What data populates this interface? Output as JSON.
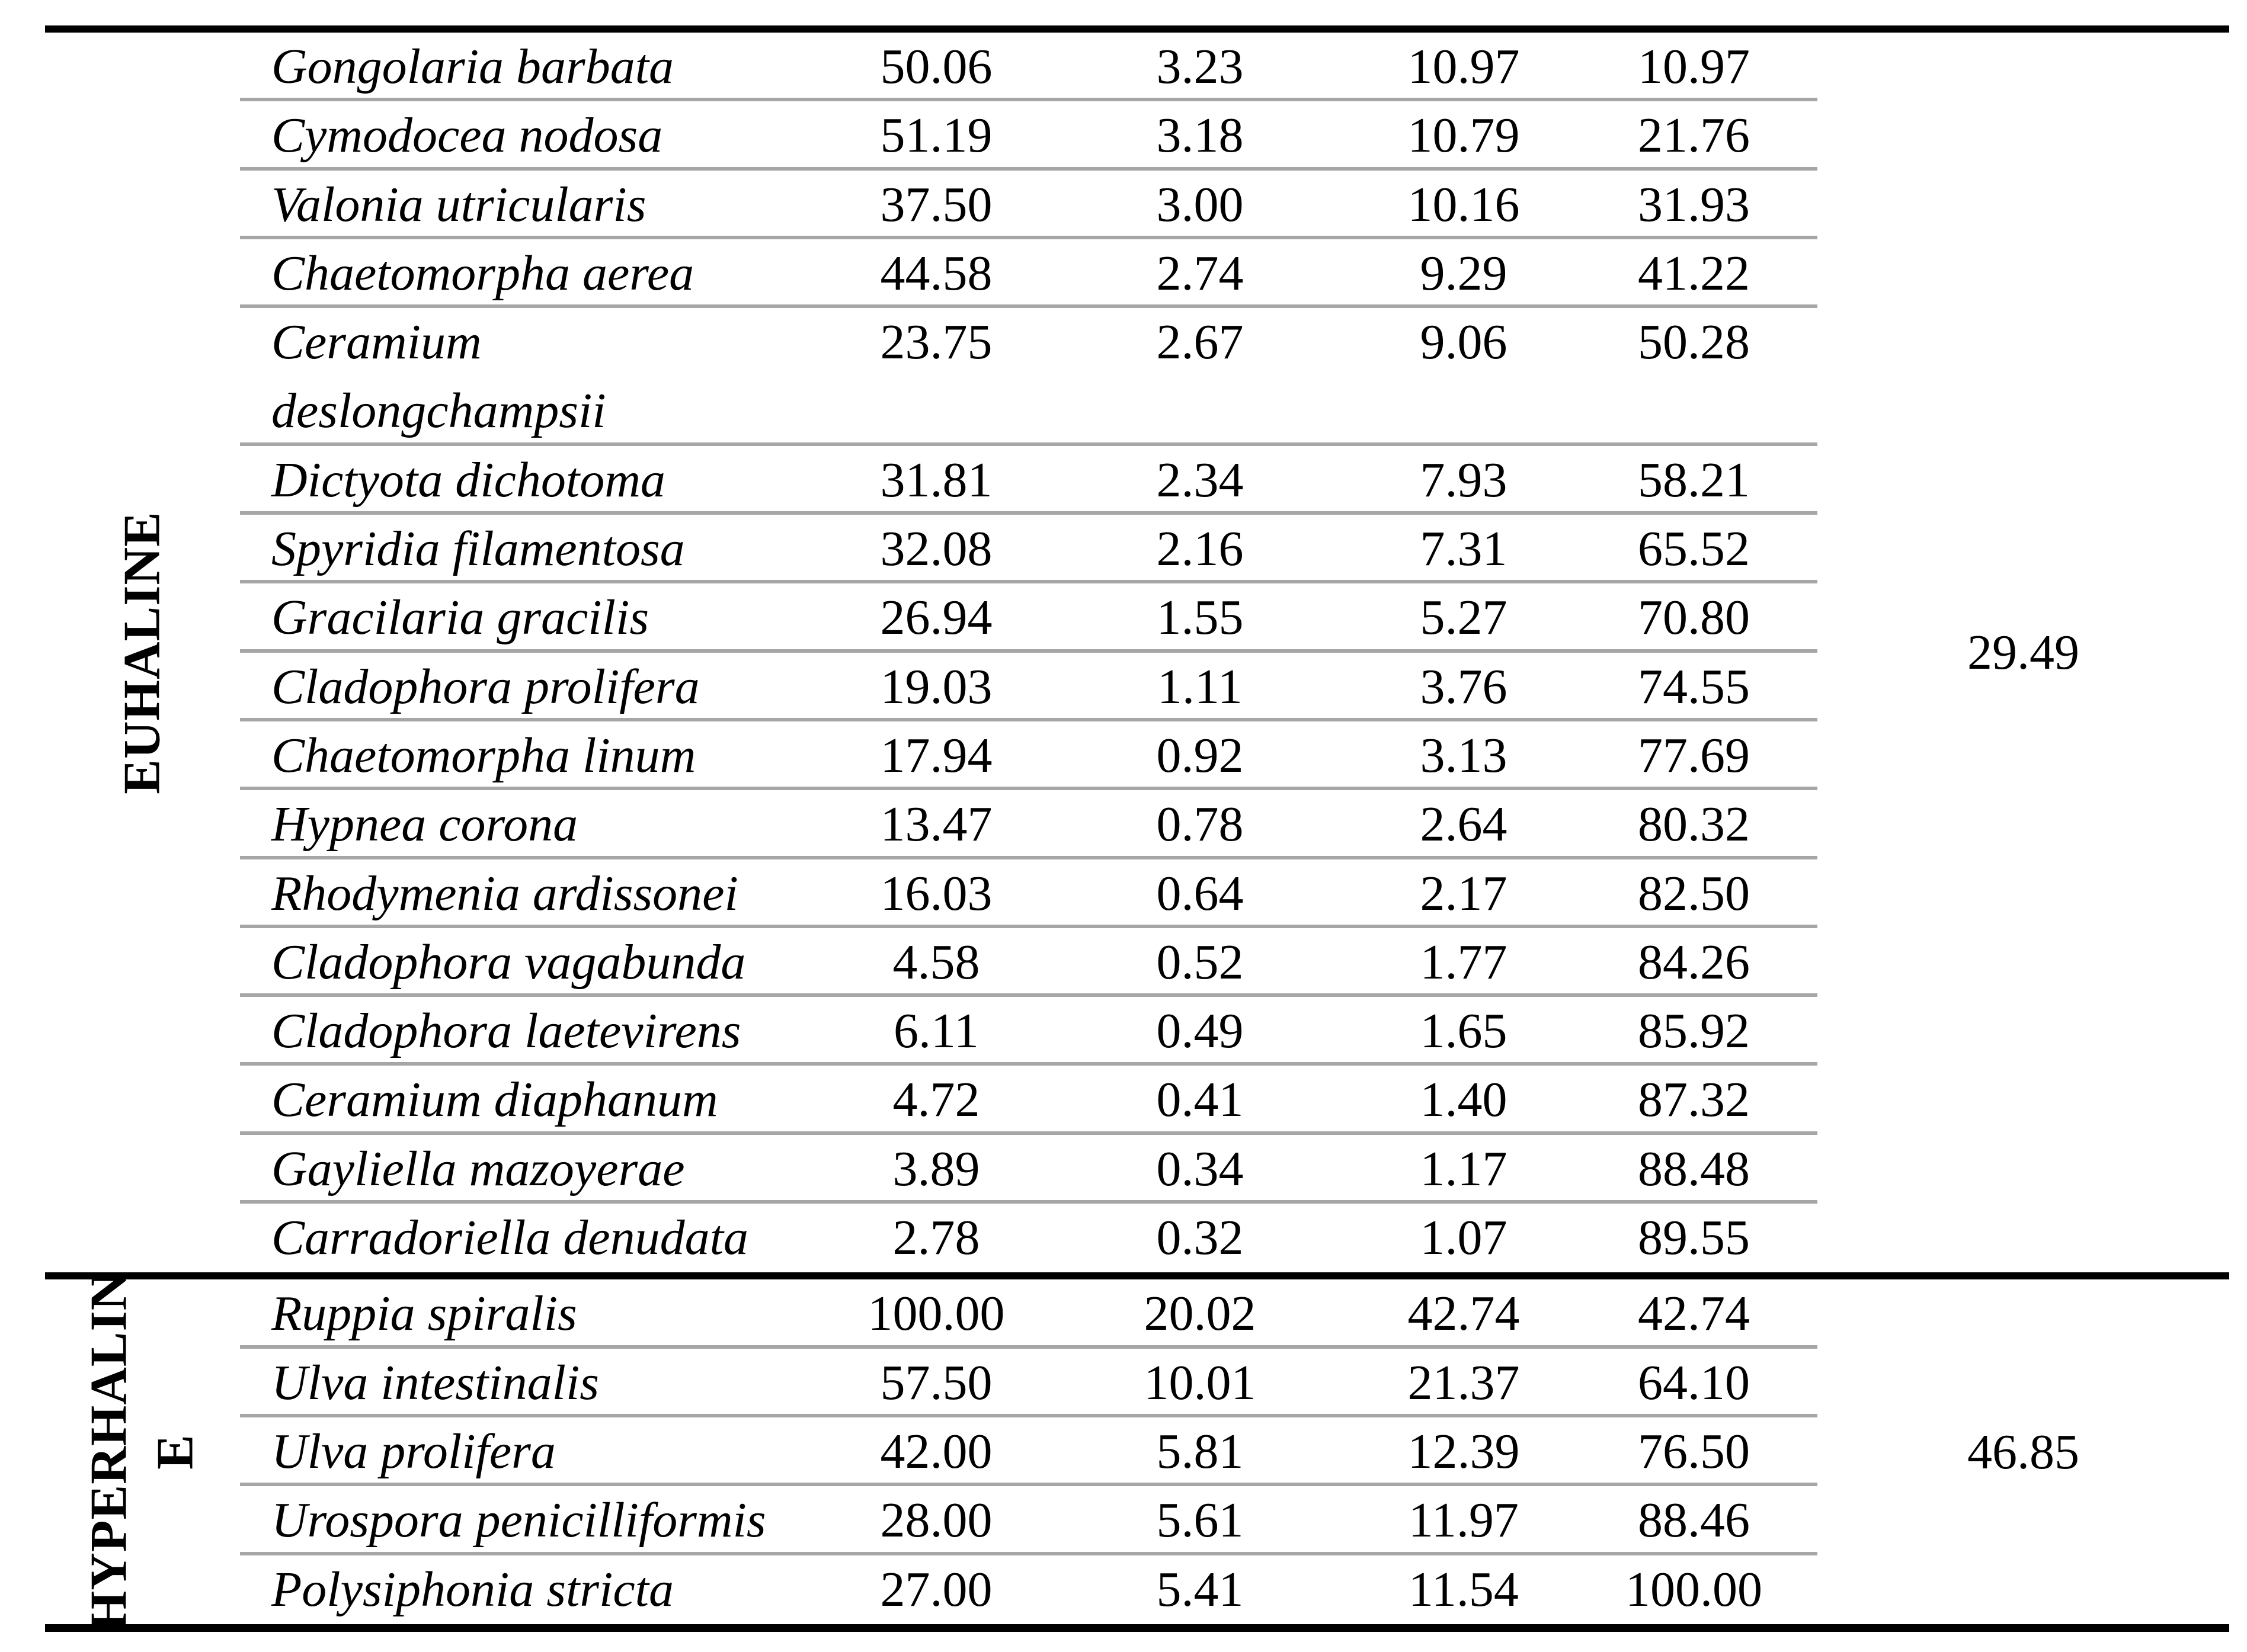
{
  "colors": {
    "background": "#ffffff",
    "text": "#000000",
    "table_border": "#000000",
    "row_divider": "#a6a6a6"
  },
  "table": {
    "sections": [
      {
        "label": "EUHALINE",
        "label_lines": [
          "EUHALINE"
        ],
        "group_contribution": "29.49",
        "rows": [
          {
            "species": "Gongolaria barbata",
            "values": [
              "50.06",
              "3.23",
              "10.97",
              "10.97"
            ]
          },
          {
            "species": "Cymodocea nodosa",
            "values": [
              "51.19",
              "3.18",
              "10.79",
              "21.76"
            ]
          },
          {
            "species": "Valonia utricularis",
            "values": [
              "37.50",
              "3.00",
              "10.16",
              "31.93"
            ]
          },
          {
            "species": "Chaetomorpha aerea",
            "values": [
              "44.58",
              "2.74",
              "9.29",
              "41.22"
            ]
          },
          {
            "species": "Ceramium deslongchampsii",
            "values": [
              "23.75",
              "2.67",
              "9.06",
              "50.28"
            ]
          },
          {
            "species": "Dictyota dichotoma",
            "values": [
              "31.81",
              "2.34",
              "7.93",
              "58.21"
            ]
          },
          {
            "species": "Spyridia filamentosa",
            "values": [
              "32.08",
              "2.16",
              "7.31",
              "65.52"
            ]
          },
          {
            "species": "Gracilaria gracilis",
            "values": [
              "26.94",
              "1.55",
              "5.27",
              "70.80"
            ]
          },
          {
            "species": "Cladophora prolifera",
            "values": [
              "19.03",
              "1.11",
              "3.76",
              "74.55"
            ]
          },
          {
            "species": "Chaetomorpha linum",
            "values": [
              "17.94",
              "0.92",
              "3.13",
              "77.69"
            ]
          },
          {
            "species": "Hypnea corona",
            "values": [
              "13.47",
              "0.78",
              "2.64",
              "80.32"
            ]
          },
          {
            "species": "Rhodymenia ardissonei",
            "values": [
              "16.03",
              "0.64",
              "2.17",
              "82.50"
            ]
          },
          {
            "species": "Cladophora vagabunda",
            "values": [
              "4.58",
              "0.52",
              "1.77",
              "84.26"
            ]
          },
          {
            "species": "Cladophora laetevirens",
            "values": [
              "6.11",
              "0.49",
              "1.65",
              "85.92"
            ]
          },
          {
            "species": "Ceramium diaphanum",
            "values": [
              "4.72",
              "0.41",
              "1.40",
              "87.32"
            ]
          },
          {
            "species": "Gayliella mazoyerae",
            "values": [
              "3.89",
              "0.34",
              "1.17",
              "88.48"
            ]
          },
          {
            "species": "Carradoriella denudata",
            "values": [
              "2.78",
              "0.32",
              "1.07",
              "89.55"
            ]
          }
        ]
      },
      {
        "label": "HYPERHALINE",
        "label_lines": [
          "HYPERHALIN",
          "E"
        ],
        "group_contribution": "46.85",
        "rows": [
          {
            "species": "Ruppia spiralis",
            "values": [
              "100.00",
              "20.02",
              "42.74",
              "42.74"
            ]
          },
          {
            "species": "Ulva intestinalis",
            "values": [
              "57.50",
              "10.01",
              "21.37",
              "64.10"
            ]
          },
          {
            "species": "Ulva prolifera",
            "values": [
              "42.00",
              "5.81",
              "12.39",
              "76.50"
            ]
          },
          {
            "species": "Urospora penicilliformis",
            "values": [
              "28.00",
              "5.61",
              "11.97",
              "88.46"
            ]
          },
          {
            "species": "Polysiphonia stricta",
            "values": [
              "27.00",
              "5.41",
              "11.54",
              "100.00"
            ]
          }
        ]
      }
    ]
  }
}
